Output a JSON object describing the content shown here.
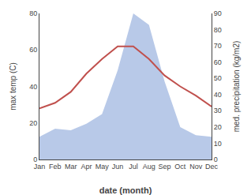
{
  "chart_data": {
    "type": "line",
    "xlabel": "date (month)",
    "ylabel": "max temp (C)",
    "y2label": "med. precipitation (kg/m2)",
    "categories": [
      "Jan",
      "Feb",
      "Mar",
      "Apr",
      "May",
      "Jun",
      "Jul",
      "Aug",
      "Sep",
      "Oct",
      "Nov",
      "Dec"
    ],
    "series": [
      {
        "type": "area",
        "axis": "y2",
        "color": "#b8c9e8",
        "values": [
          14,
          19,
          18,
          22,
          28,
          55,
          90,
          83,
          48,
          20,
          15,
          14
        ]
      },
      {
        "type": "line",
        "color": "#c0504d",
        "values": [
          28,
          31,
          37,
          47,
          55,
          62,
          62,
          55,
          46,
          40,
          35,
          29
        ]
      }
    ],
    "ylim": [
      0,
      80
    ],
    "yticks": [
      0,
      20,
      40,
      60,
      80
    ],
    "y2lim": [
      0,
      90
    ],
    "y2ticks": [
      0,
      10,
      20,
      30,
      40,
      50,
      60,
      70,
      80,
      90
    ],
    "grid": false
  }
}
